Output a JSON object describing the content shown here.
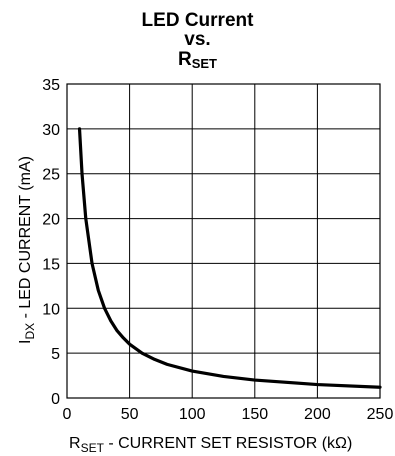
{
  "chart_data": {
    "type": "line",
    "title_lines": [
      "LED Current",
      "vs."
    ],
    "title_symbol": "R",
    "title_symbol_sub": "SET",
    "xlabel": {
      "main": "R",
      "sub": "SET",
      "rest": " - CURRENT SET RESISTOR (kΩ)"
    },
    "ylabel": {
      "main": "I",
      "sub": "DX",
      "rest": " - LED CURRENT (mA)"
    },
    "xlim": [
      0,
      250
    ],
    "ylim": [
      0,
      35
    ],
    "xticks": [
      "0",
      "50",
      "100",
      "150",
      "200",
      "250"
    ],
    "yticks": [
      "0",
      "5",
      "10",
      "15",
      "20",
      "25",
      "30",
      "35"
    ],
    "grid": true,
    "line_color": "#000000",
    "series": [
      {
        "x": [
          10,
          12,
          15,
          20,
          25,
          30,
          35,
          40,
          45,
          50,
          60,
          70,
          80,
          100,
          125,
          150,
          200,
          250
        ],
        "y": [
          30,
          25,
          20,
          15,
          12,
          10,
          8.6,
          7.5,
          6.7,
          6,
          5,
          4.3,
          3.75,
          3,
          2.4,
          2,
          1.5,
          1.2
        ]
      }
    ]
  }
}
